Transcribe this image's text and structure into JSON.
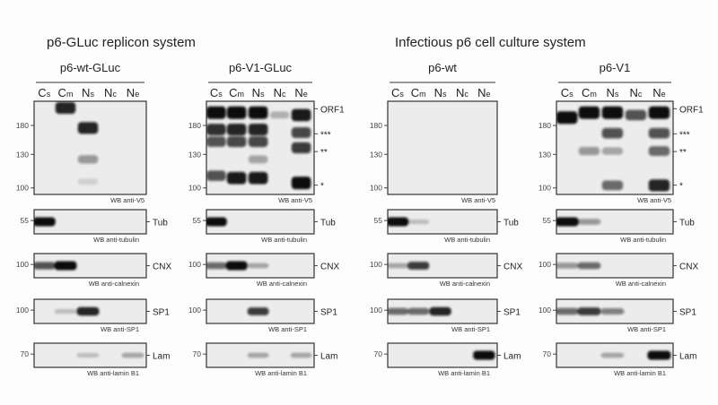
{
  "systems": [
    "p6-GLuc replicon system",
    "Infectious p6 cell culture system"
  ],
  "lanes": [
    [
      "C",
      "s"
    ],
    [
      "C",
      "m"
    ],
    [
      "N",
      "s"
    ],
    [
      "N",
      "c"
    ],
    [
      "N",
      "e"
    ]
  ],
  "main_blot": {
    "antibody": "WB anti-V5",
    "mw_markers": [
      "180",
      "130",
      "100"
    ],
    "right_labels": [
      "ORF1",
      "***",
      "**",
      "*"
    ]
  },
  "small_blots": [
    {
      "key": "tub",
      "mw": "55",
      "label": "Tub",
      "antibody": "WB anti-tubulin"
    },
    {
      "key": "cnx",
      "mw": "100",
      "label": "CNX",
      "antibody": "WB anti-calnexin"
    },
    {
      "key": "sp1",
      "mw": "100",
      "label": "SP1",
      "antibody": "WB anti-SP1"
    },
    {
      "key": "lam",
      "mw": "70",
      "label": "Lam",
      "antibody": "WB anti-lamin B1"
    }
  ],
  "panels": [
    {
      "title": "p6-wt-GLuc",
      "right_labels": false,
      "main_bands": [
        [
          1,
          215,
          0.9
        ],
        [
          2,
          175,
          0.9
        ],
        [
          2,
          125,
          0.4
        ],
        [
          2,
          105,
          0.12
        ]
      ],
      "tub": [
        [
          0,
          1
        ]
      ],
      "cnx": [
        [
          0,
          0.7
        ],
        [
          1,
          1
        ]
      ],
      "sp1": [
        [
          1,
          0.2
        ],
        [
          2,
          0.9
        ]
      ],
      "lam": [
        [
          2,
          0.2
        ],
        [
          4,
          0.3
        ]
      ]
    },
    {
      "title": "p6-V1-GLuc",
      "right_labels": true,
      "main_bands": [
        [
          0,
          205,
          1
        ],
        [
          1,
          205,
          1
        ],
        [
          2,
          205,
          1
        ],
        [
          3,
          200,
          0.25
        ],
        [
          4,
          200,
          0.95
        ],
        [
          0,
          172,
          0.85
        ],
        [
          1,
          172,
          0.9
        ],
        [
          2,
          172,
          0.9
        ],
        [
          4,
          166,
          0.75
        ],
        [
          0,
          150,
          0.7
        ],
        [
          1,
          150,
          0.75
        ],
        [
          2,
          150,
          0.75
        ],
        [
          4,
          140,
          0.8
        ],
        [
          2,
          125,
          0.35
        ],
        [
          0,
          110,
          0.7
        ],
        [
          1,
          108,
          0.95
        ],
        [
          2,
          108,
          0.95
        ],
        [
          4,
          104,
          1
        ]
      ],
      "tub": [
        [
          0,
          1
        ]
      ],
      "cnx": [
        [
          0,
          0.6
        ],
        [
          1,
          1
        ],
        [
          2,
          0.3
        ]
      ],
      "sp1": [
        [
          2,
          0.8
        ]
      ],
      "lam": [
        [
          2,
          0.3
        ],
        [
          4,
          0.3
        ]
      ]
    },
    {
      "title": "p6-wt",
      "right_labels": false,
      "main_bands": [],
      "tub": [
        [
          0,
          1
        ],
        [
          1,
          0.2
        ]
      ],
      "cnx": [
        [
          0,
          0.3
        ],
        [
          1,
          0.8
        ]
      ],
      "sp1": [
        [
          0,
          0.6
        ],
        [
          1,
          0.6
        ],
        [
          2,
          0.9
        ]
      ],
      "lam": [
        [
          4,
          1
        ]
      ]
    },
    {
      "title": "p6-V1",
      "right_labels": true,
      "main_bands": [
        [
          0,
          195,
          1
        ],
        [
          1,
          205,
          1
        ],
        [
          2,
          205,
          1
        ],
        [
          3,
          200,
          0.7
        ],
        [
          4,
          205,
          1
        ],
        [
          2,
          165,
          0.7
        ],
        [
          4,
          165,
          0.7
        ],
        [
          1,
          135,
          0.4
        ],
        [
          2,
          135,
          0.3
        ],
        [
          4,
          135,
          0.6
        ],
        [
          2,
          102,
          0.6
        ],
        [
          4,
          102,
          0.9
        ]
      ],
      "tub": [
        [
          0,
          1
        ],
        [
          1,
          0.4
        ]
      ],
      "cnx": [
        [
          0,
          0.4
        ],
        [
          1,
          0.6
        ]
      ],
      "sp1": [
        [
          0,
          0.6
        ],
        [
          1,
          0.8
        ],
        [
          2,
          0.5
        ]
      ],
      "lam": [
        [
          2,
          0.3
        ],
        [
          4,
          1
        ]
      ]
    }
  ]
}
